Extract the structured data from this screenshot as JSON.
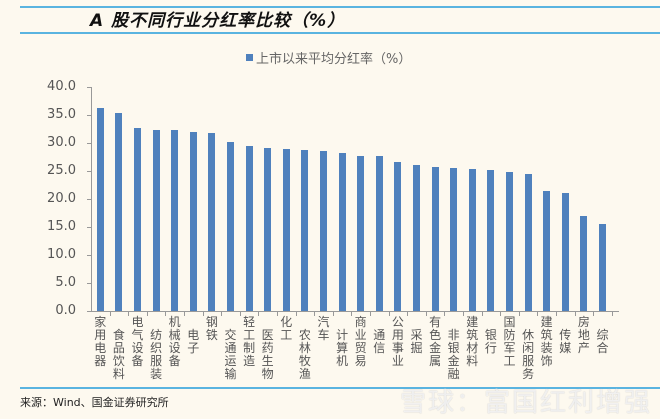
{
  "header": {
    "title": "A 股不同行业分红率比较（%）"
  },
  "legend": {
    "label": "上市以来平均分红率（%）",
    "color": "#4f81bd"
  },
  "source": "来源：Wind、国金证券研究所",
  "watermark": "雪球：富国红利增强",
  "chart_data": {
    "type": "bar",
    "title": "A 股不同行业分红率比较（%）",
    "xlabel": "",
    "ylabel": "",
    "ylim": [
      0,
      40
    ],
    "yticks": [
      "0.0",
      "5.0",
      "10.0",
      "15.0",
      "20.0",
      "25.0",
      "30.0",
      "35.0",
      "40.0"
    ],
    "grid": false,
    "legend_position": "top",
    "categories": [
      "家用电器",
      "食品饮料",
      "电气设备",
      "纺织服装",
      "机械设备",
      "电子",
      "钢铁",
      "交通运输",
      "轻工制造",
      "医药生物",
      "化工",
      "农林牧渔",
      "汽车",
      "计算机",
      "商业贸易",
      "通信",
      "公用事业",
      "采掘",
      "有色金属",
      "非银金融",
      "建筑材料",
      "银行",
      "国防军工",
      "休闲服务",
      "建筑装饰",
      "传媒",
      "房地产",
      "综合"
    ],
    "series": [
      {
        "name": "上市以来平均分红率（%）",
        "color": "#4f81bd",
        "values": [
          36.3,
          35.3,
          32.6,
          32.3,
          32.3,
          31.9,
          31.8,
          30.1,
          29.4,
          29.1,
          29.0,
          28.8,
          28.6,
          28.3,
          27.6,
          27.6,
          26.6,
          26.0,
          25.7,
          25.6,
          25.4,
          25.2,
          24.8,
          24.5,
          21.5,
          21.1,
          17.0,
          15.6
        ]
      }
    ]
  }
}
